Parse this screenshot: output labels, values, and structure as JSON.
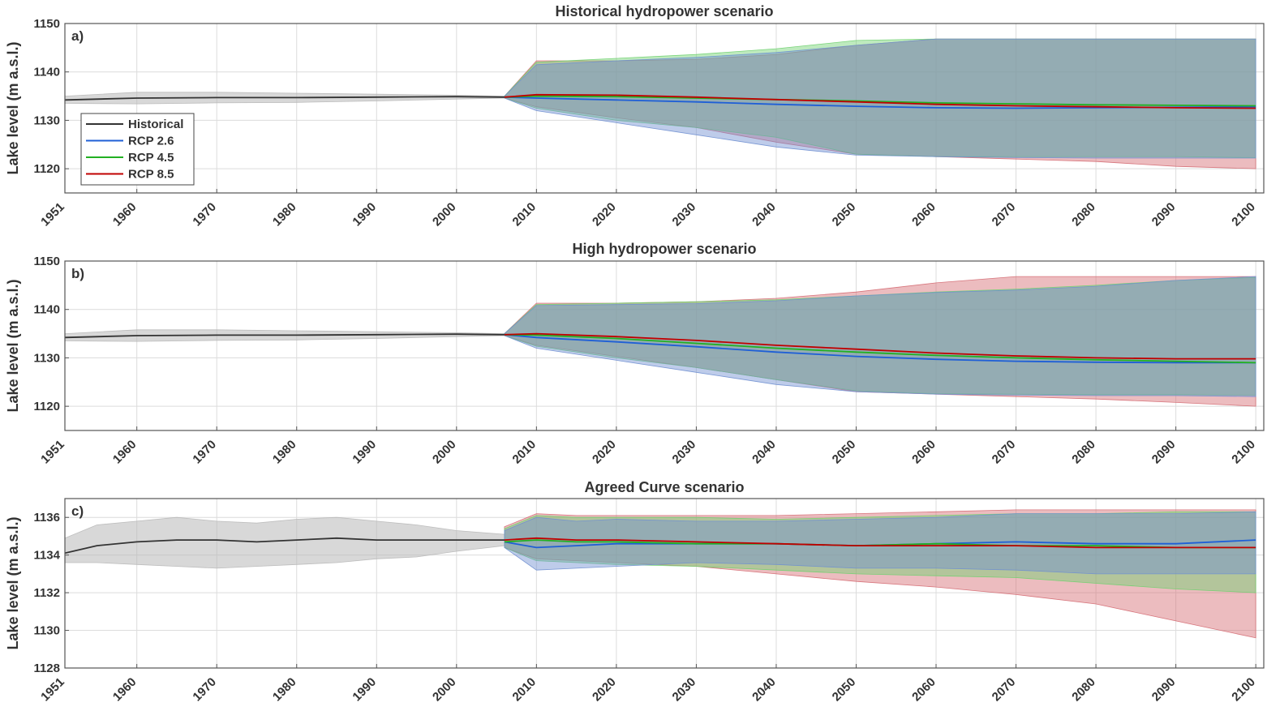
{
  "chart_data": [
    {
      "type": "line",
      "panel_label": "a)",
      "title": "Historical hydropower scenario",
      "ylabel": "Lake level (m a.s.l.)",
      "xlim": [
        1951,
        2101
      ],
      "ylim": [
        1115,
        1150
      ],
      "xticks": [
        1951,
        1960,
        1970,
        1980,
        1990,
        2000,
        2010,
        2020,
        2030,
        2040,
        2050,
        2060,
        2070,
        2080,
        2090,
        2100
      ],
      "yticks": [
        1120,
        1130,
        1140,
        1150
      ],
      "grid": true,
      "legend": {
        "position": "left",
        "entries": [
          "Historical",
          "RCP 2.6",
          "RCP 4.5",
          "RCP 8.5"
        ]
      },
      "series": [
        {
          "name": "Historical",
          "color": "#333333",
          "band_color": "#b8b8b8",
          "x": [
            1951,
            1960,
            1970,
            1980,
            1990,
            2000,
            2006
          ],
          "y": [
            1134.2,
            1134.6,
            1134.7,
            1134.7,
            1134.8,
            1134.9,
            1134.8
          ],
          "lower": [
            1133.5,
            1133.4,
            1133.6,
            1133.7,
            1134.0,
            1134.4,
            1134.6
          ],
          "upper": [
            1135.0,
            1135.8,
            1135.8,
            1135.6,
            1135.4,
            1135.2,
            1135.0
          ]
        },
        {
          "name": "RCP 2.6",
          "color": "#1f5fd6",
          "band_color": "#6f8fd0",
          "x": [
            2006,
            2010,
            2020,
            2030,
            2040,
            2050,
            2060,
            2070,
            2080,
            2090,
            2100
          ],
          "y": [
            1134.8,
            1134.6,
            1134.2,
            1133.8,
            1133.3,
            1132.9,
            1132.6,
            1132.5,
            1132.6,
            1132.7,
            1132.8
          ],
          "lower": [
            1134.6,
            1132.0,
            1129.5,
            1127.0,
            1124.5,
            1122.8,
            1122.5,
            1122.3,
            1122.2,
            1122.2,
            1122.2
          ],
          "upper": [
            1135.0,
            1141.5,
            1142.3,
            1143.0,
            1144.0,
            1145.5,
            1146.8,
            1146.8,
            1146.8,
            1146.8,
            1146.8
          ]
        },
        {
          "name": "RCP 4.5",
          "color": "#22b022",
          "band_color": "#6fd06f",
          "x": [
            2006,
            2010,
            2020,
            2030,
            2040,
            2050,
            2060,
            2070,
            2080,
            2090,
            2100
          ],
          "y": [
            1134.8,
            1135.0,
            1134.9,
            1134.6,
            1134.3,
            1134.0,
            1133.6,
            1133.4,
            1133.2,
            1133.1,
            1133.0
          ],
          "lower": [
            1134.6,
            1132.5,
            1130.0,
            1128.5,
            1126.5,
            1123.0,
            1122.5,
            1122.5,
            1122.5,
            1122.5,
            1122.3
          ],
          "upper": [
            1135.0,
            1142.0,
            1142.8,
            1143.6,
            1144.8,
            1146.5,
            1146.8,
            1146.8,
            1146.8,
            1146.8,
            1146.8
          ]
        },
        {
          "name": "RCP 8.5",
          "color": "#c00000",
          "band_color": "#d46a72",
          "x": [
            2006,
            2010,
            2020,
            2030,
            2040,
            2050,
            2060,
            2070,
            2080,
            2090,
            2100
          ],
          "y": [
            1134.8,
            1135.3,
            1135.2,
            1134.8,
            1134.3,
            1133.8,
            1133.3,
            1133.0,
            1132.8,
            1132.6,
            1132.5
          ],
          "lower": [
            1134.6,
            1132.8,
            1130.5,
            1128.5,
            1125.5,
            1123.0,
            1122.5,
            1122.0,
            1121.5,
            1120.5,
            1120.0
          ],
          "upper": [
            1135.0,
            1142.3,
            1142.3,
            1142.6,
            1143.6,
            1145.5,
            1146.8,
            1146.8,
            1146.8,
            1146.8,
            1146.8
          ]
        }
      ]
    },
    {
      "type": "line",
      "panel_label": "b)",
      "title": "High hydropower scenario",
      "ylabel": "Lake level (m a.s.l.)",
      "xlim": [
        1951,
        2101
      ],
      "ylim": [
        1115,
        1150
      ],
      "xticks": [
        1951,
        1960,
        1970,
        1980,
        1990,
        2000,
        2010,
        2020,
        2030,
        2040,
        2050,
        2060,
        2070,
        2080,
        2090,
        2100
      ],
      "yticks": [
        1120,
        1130,
        1140,
        1150
      ],
      "grid": true,
      "series": [
        {
          "name": "Historical",
          "color": "#333333",
          "band_color": "#b8b8b8",
          "x": [
            1951,
            1960,
            1970,
            1980,
            1990,
            2000,
            2006
          ],
          "y": [
            1134.2,
            1134.6,
            1134.7,
            1134.7,
            1134.8,
            1134.9,
            1134.8
          ],
          "lower": [
            1133.5,
            1133.4,
            1133.6,
            1133.7,
            1134.0,
            1134.4,
            1134.6
          ],
          "upper": [
            1135.0,
            1135.8,
            1135.8,
            1135.6,
            1135.4,
            1135.2,
            1135.0
          ]
        },
        {
          "name": "RCP 2.6",
          "color": "#1f5fd6",
          "band_color": "#6f8fd0",
          "x": [
            2006,
            2010,
            2020,
            2030,
            2040,
            2050,
            2060,
            2070,
            2080,
            2090,
            2100
          ],
          "y": [
            1134.8,
            1134.2,
            1133.3,
            1132.3,
            1131.2,
            1130.3,
            1129.7,
            1129.3,
            1129.1,
            1129.0,
            1129.0
          ],
          "lower": [
            1134.6,
            1132.0,
            1129.5,
            1127.0,
            1124.5,
            1123.0,
            1122.5,
            1122.3,
            1122.2,
            1122.2,
            1122.0
          ],
          "upper": [
            1135.0,
            1140.8,
            1141.0,
            1141.2,
            1141.8,
            1142.8,
            1143.5,
            1144.0,
            1144.8,
            1146.0,
            1146.8
          ]
        },
        {
          "name": "RCP 4.5",
          "color": "#22b022",
          "band_color": "#6fd06f",
          "x": [
            2006,
            2010,
            2020,
            2030,
            2040,
            2050,
            2060,
            2070,
            2080,
            2090,
            2100
          ],
          "y": [
            1134.8,
            1134.7,
            1134.0,
            1133.0,
            1132.0,
            1131.2,
            1130.5,
            1130.0,
            1129.6,
            1129.3,
            1129.0
          ],
          "lower": [
            1134.6,
            1132.4,
            1130.0,
            1128.0,
            1125.5,
            1123.2,
            1122.6,
            1122.5,
            1122.4,
            1122.4,
            1122.3
          ],
          "upper": [
            1135.0,
            1141.0,
            1141.3,
            1141.6,
            1142.0,
            1142.8,
            1143.6,
            1144.2,
            1145.0,
            1146.0,
            1146.6
          ]
        },
        {
          "name": "RCP 8.5",
          "color": "#c00000",
          "band_color": "#d46a72",
          "x": [
            2006,
            2010,
            2020,
            2030,
            2040,
            2050,
            2060,
            2070,
            2080,
            2090,
            2100
          ],
          "y": [
            1134.8,
            1135.0,
            1134.4,
            1133.6,
            1132.6,
            1131.8,
            1131.0,
            1130.4,
            1130.0,
            1129.8,
            1129.8
          ],
          "lower": [
            1134.6,
            1132.6,
            1130.3,
            1128.0,
            1125.5,
            1123.0,
            1122.5,
            1122.0,
            1121.5,
            1120.8,
            1120.0
          ],
          "upper": [
            1135.0,
            1141.3,
            1141.3,
            1141.6,
            1142.3,
            1143.6,
            1145.5,
            1146.8,
            1146.8,
            1146.8,
            1146.8
          ]
        }
      ]
    },
    {
      "type": "line",
      "panel_label": "c)",
      "title": "Agreed Curve scenario",
      "ylabel": "Lake level (m a.s.l.)",
      "xlim": [
        1951,
        2101
      ],
      "ylim": [
        1128,
        1137
      ],
      "xticks": [
        1951,
        1960,
        1970,
        1980,
        1990,
        2000,
        2010,
        2020,
        2030,
        2040,
        2050,
        2060,
        2070,
        2080,
        2090,
        2100
      ],
      "yticks": [
        1128,
        1130,
        1132,
        1134,
        1136
      ],
      "grid": true,
      "series": [
        {
          "name": "Historical",
          "color": "#333333",
          "band_color": "#b8b8b8",
          "x": [
            1951,
            1955,
            1960,
            1965,
            1970,
            1975,
            1980,
            1985,
            1990,
            1995,
            2000,
            2006
          ],
          "y": [
            1134.1,
            1134.5,
            1134.7,
            1134.8,
            1134.8,
            1134.7,
            1134.8,
            1134.9,
            1134.8,
            1134.8,
            1134.8,
            1134.8
          ],
          "lower": [
            1133.6,
            1133.6,
            1133.5,
            1133.4,
            1133.3,
            1133.4,
            1133.5,
            1133.6,
            1133.8,
            1133.9,
            1134.2,
            1134.5
          ],
          "upper": [
            1134.9,
            1135.6,
            1135.8,
            1136.0,
            1135.8,
            1135.7,
            1135.9,
            1136.0,
            1135.8,
            1135.6,
            1135.3,
            1135.1
          ]
        },
        {
          "name": "RCP 2.6",
          "color": "#1f5fd6",
          "band_color": "#6f8fd0",
          "x": [
            2006,
            2010,
            2015,
            2020,
            2030,
            2040,
            2050,
            2060,
            2070,
            2080,
            2090,
            2100
          ],
          "y": [
            1134.7,
            1134.4,
            1134.5,
            1134.6,
            1134.6,
            1134.6,
            1134.5,
            1134.6,
            1134.7,
            1134.6,
            1134.6,
            1134.8
          ],
          "lower": [
            1134.4,
            1133.2,
            1133.3,
            1133.4,
            1133.6,
            1133.5,
            1133.3,
            1133.3,
            1133.2,
            1133.0,
            1133.0,
            1133.0
          ],
          "upper": [
            1135.3,
            1136.0,
            1135.8,
            1135.9,
            1135.8,
            1135.8,
            1135.9,
            1136.0,
            1136.2,
            1136.2,
            1136.2,
            1136.3
          ]
        },
        {
          "name": "RCP 4.5",
          "color": "#22b022",
          "band_color": "#6fd06f",
          "x": [
            2006,
            2010,
            2015,
            2020,
            2030,
            2040,
            2050,
            2060,
            2070,
            2080,
            2090,
            2100
          ],
          "y": [
            1134.7,
            1134.8,
            1134.7,
            1134.7,
            1134.6,
            1134.6,
            1134.5,
            1134.6,
            1134.5,
            1134.5,
            1134.4,
            1134.4
          ],
          "lower": [
            1134.4,
            1133.7,
            1133.6,
            1133.5,
            1133.4,
            1133.2,
            1133.0,
            1132.9,
            1132.8,
            1132.5,
            1132.2,
            1132.0
          ],
          "upper": [
            1135.4,
            1136.1,
            1136.0,
            1136.0,
            1136.0,
            1135.9,
            1136.0,
            1136.1,
            1136.2,
            1136.2,
            1136.3,
            1136.3
          ]
        },
        {
          "name": "RCP 8.5",
          "color": "#c00000",
          "band_color": "#d46a72",
          "x": [
            2006,
            2010,
            2015,
            2020,
            2030,
            2040,
            2050,
            2060,
            2070,
            2080,
            2090,
            2100
          ],
          "y": [
            1134.8,
            1134.9,
            1134.8,
            1134.8,
            1134.7,
            1134.6,
            1134.5,
            1134.5,
            1134.5,
            1134.4,
            1134.4,
            1134.4
          ],
          "lower": [
            1134.4,
            1133.8,
            1133.7,
            1133.6,
            1133.4,
            1133.0,
            1132.6,
            1132.3,
            1131.9,
            1131.4,
            1130.5,
            1129.6
          ],
          "upper": [
            1135.5,
            1136.2,
            1136.1,
            1136.1,
            1136.1,
            1136.1,
            1136.2,
            1136.3,
            1136.4,
            1136.4,
            1136.4,
            1136.4
          ]
        }
      ]
    }
  ]
}
